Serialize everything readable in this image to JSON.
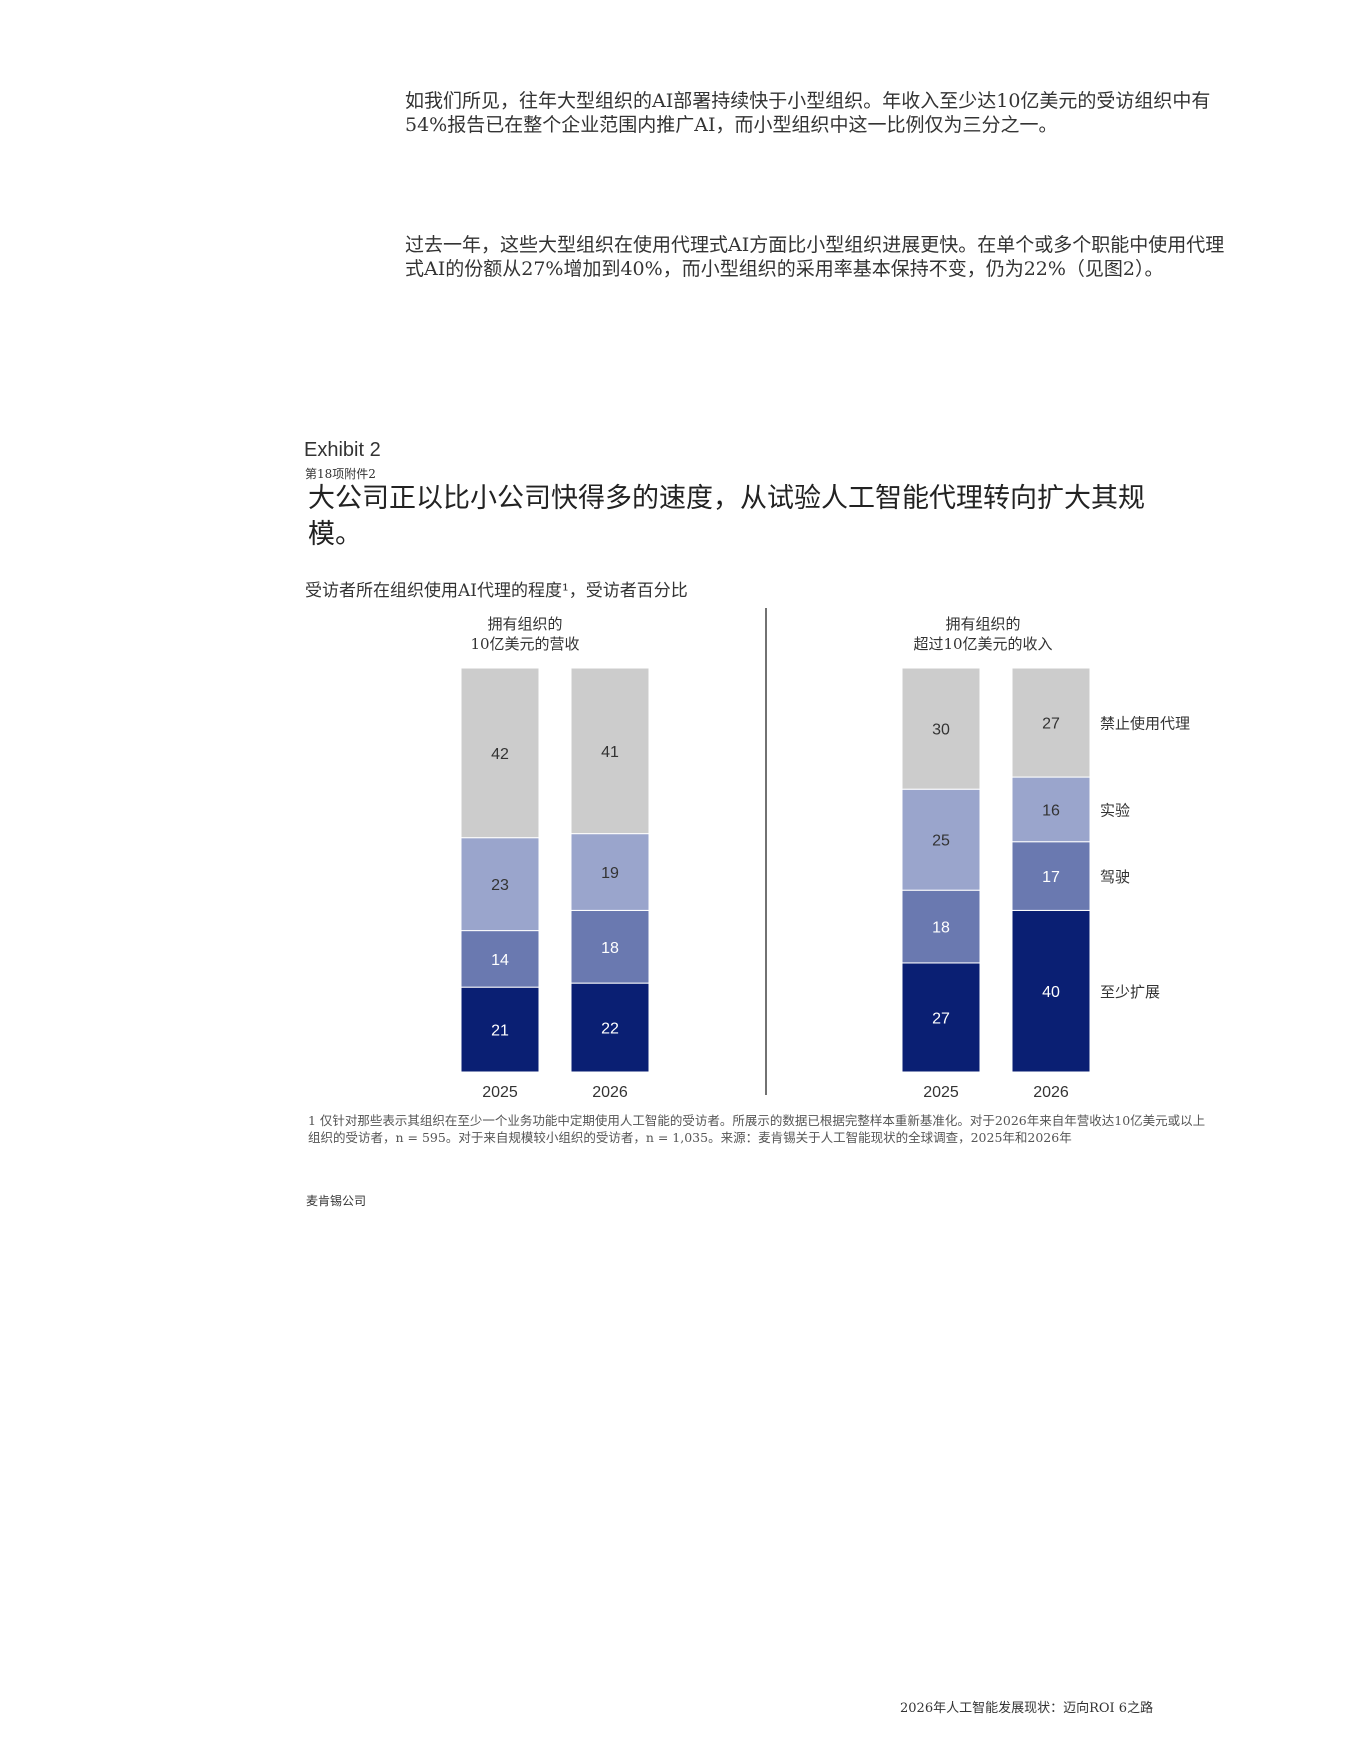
{
  "paragraphs": {
    "p1": "如我们所见，往年大型组织的AI部署持续快于小型组织。年收入至少达10亿美元的受访组织中有54%报告已在整个企业范围内推广AI，而小型组织中这一比例仅为三分之一。",
    "p2": "过去一年，这些大型组织在使用代理式AI方面比小型组织进展更快。在单个或多个职能中使用代理式AI的份额从27%增加到40%，而小型组织的采用率基本保持不变，仍为22%（见图2）。"
  },
  "exhibit": {
    "label": "Exhibit 2",
    "sub_label": "第18项附件2",
    "title": "大公司正以比小公司快得多的速度，从试验人工智能代理转向扩大其规模。",
    "subtitle": "受访者所在组织使用AI代理的程度¹，受访者百分比"
  },
  "chart_data": [
    {
      "type": "bar",
      "stacked": true,
      "panel_title_line1": "拥有组织的",
      "panel_title_line2": "10亿美元的营收",
      "categories": [
        "2025",
        "2026"
      ],
      "series": [
        {
          "name": "至少扩展",
          "values": [
            21,
            22
          ],
          "color": "#0a1f73"
        },
        {
          "name": "驾驶",
          "values": [
            14,
            18
          ],
          "color": "#6a79b0"
        },
        {
          "name": "实验",
          "values": [
            23,
            19
          ],
          "color": "#9aa5cc"
        },
        {
          "name": "禁止使用代理",
          "values": [
            42,
            41
          ],
          "color": "#cccccc"
        }
      ]
    },
    {
      "type": "bar",
      "stacked": true,
      "panel_title_line1": "拥有组织的",
      "panel_title_line2": "超过10亿美元的收入",
      "categories": [
        "2025",
        "2026"
      ],
      "series": [
        {
          "name": "至少扩展",
          "values": [
            27,
            40
          ],
          "color": "#0a1f73"
        },
        {
          "name": "驾驶",
          "values": [
            18,
            17
          ],
          "color": "#6a79b0"
        },
        {
          "name": "实验",
          "values": [
            25,
            16
          ],
          "color": "#9aa5cc"
        },
        {
          "name": "禁止使用代理",
          "values": [
            30,
            27
          ],
          "color": "#cccccc"
        }
      ],
      "legend_position": "right"
    }
  ],
  "footnote": "1 仅针对那些表示其组织在至少一个业务功能中定期使用人工智能的受访者。所展示的数据已根据完整样本重新基准化。对于2026年来自年营收达10亿美元或以上组织的受访者，n = 595。对于来自规模较小组织的受访者，n = 1,035。来源：麦肯锡关于人工智能现状的全球调查，2025年和2026年",
  "company": "麦肯锡公司",
  "page_footer": "2026年人工智能发展现状：迈向ROI 6之路"
}
